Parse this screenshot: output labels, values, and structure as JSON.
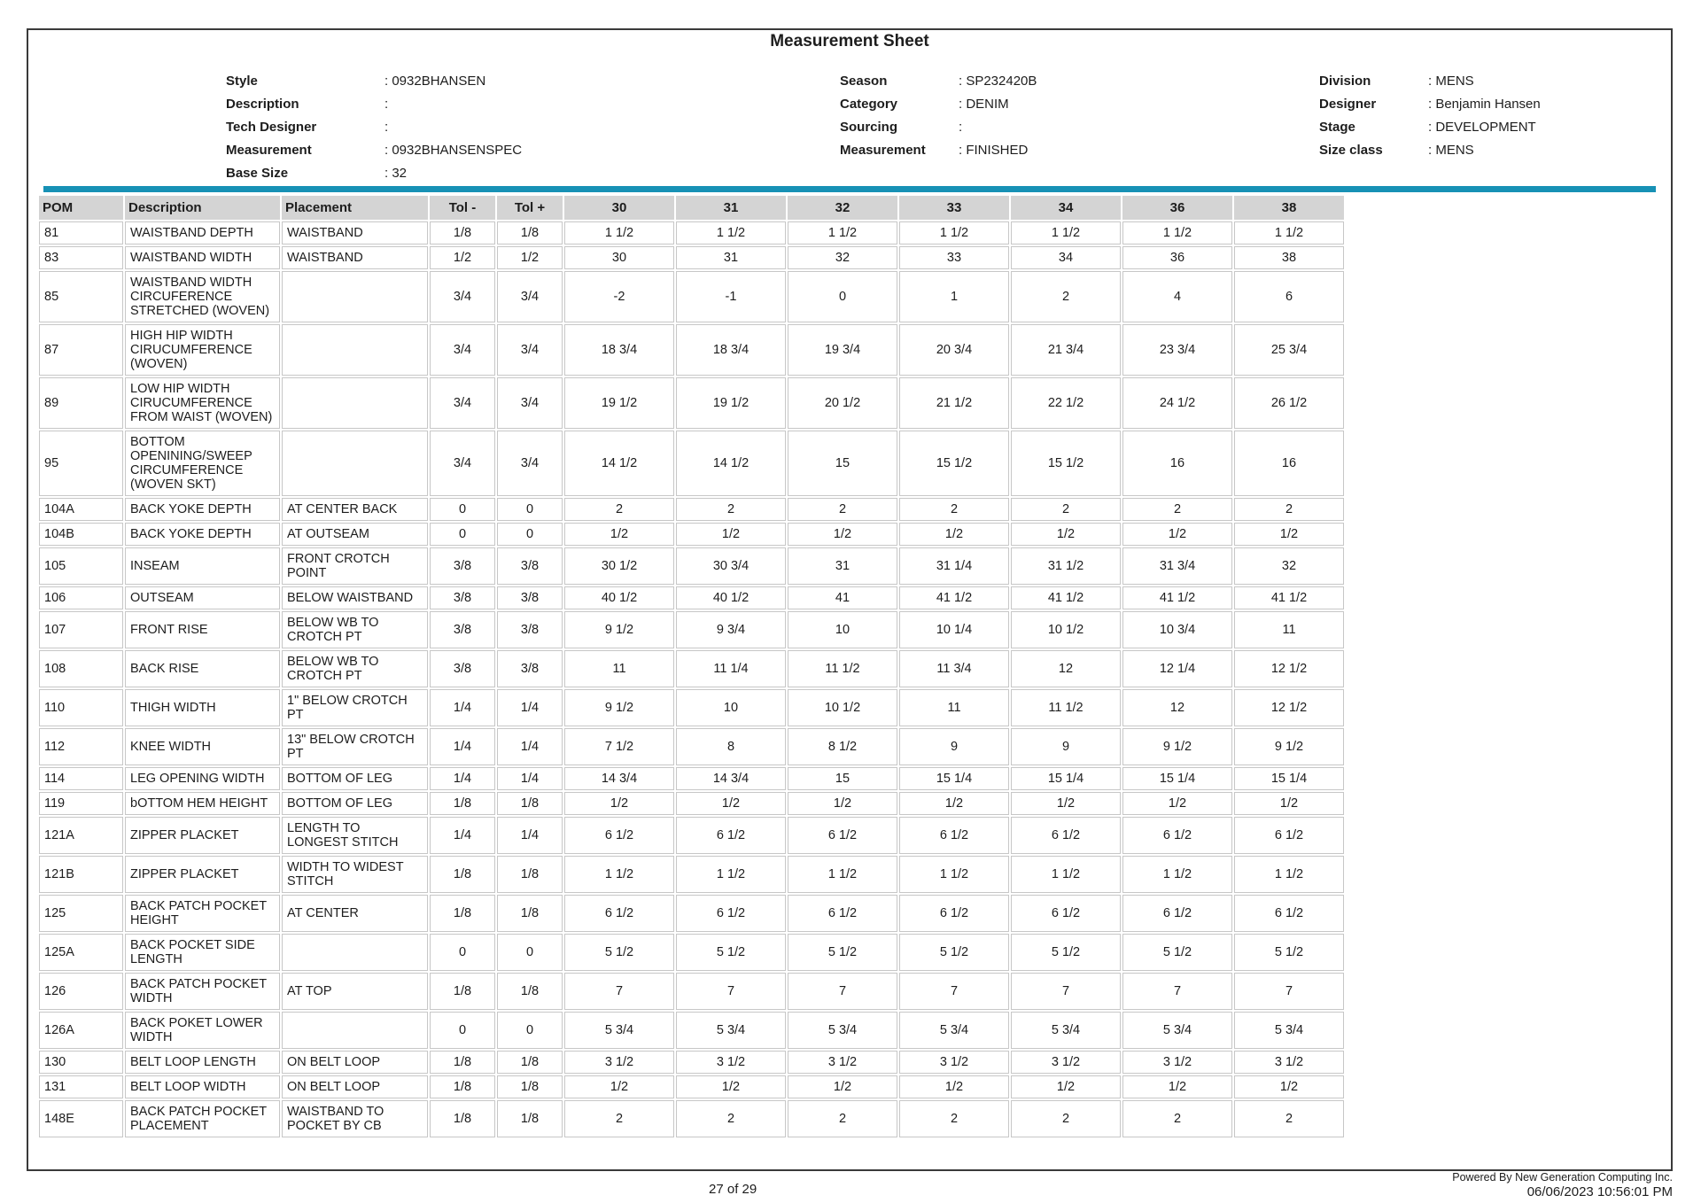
{
  "title": "Measurement Sheet",
  "colors": {
    "accent_line": "#1791b5",
    "table_header_bg": "#d4d4d4",
    "cell_border": "#c7c7c7"
  },
  "info": {
    "left": [
      {
        "label": "Style",
        "value": ": 0932BHANSEN"
      },
      {
        "label": "Description",
        "value": ":"
      },
      {
        "label": "Tech Designer",
        "value": ":"
      },
      {
        "label": "Measurement",
        "value": ": 0932BHANSENSPEC"
      },
      {
        "label": "Base Size",
        "value": ": 32"
      }
    ],
    "middle": [
      {
        "label": "Season",
        "value": ": SP232420B"
      },
      {
        "label": "Category",
        "value": ": DENIM"
      },
      {
        "label": "Sourcing",
        "value": ":"
      },
      {
        "label": "Measurement",
        "value": ": FINISHED"
      }
    ],
    "right": [
      {
        "label": "Division",
        "value": ": MENS"
      },
      {
        "label": "Designer",
        "value": ": Benjamin Hansen"
      },
      {
        "label": "Stage",
        "value": ": DEVELOPMENT"
      },
      {
        "label": "Size class",
        "value": ": MENS"
      }
    ]
  },
  "table": {
    "headers": [
      "POM",
      "Description",
      "Placement",
      "Tol -",
      "Tol +",
      "30",
      "31",
      "32",
      "33",
      "34",
      "36",
      "38"
    ],
    "rows": [
      {
        "pom": "81",
        "description": "WAISTBAND DEPTH",
        "placement": "WAISTBAND",
        "tol_minus": "1/8",
        "tol_plus": "1/8",
        "sizes": [
          "1 1/2",
          "1 1/2",
          "1 1/2",
          "1 1/2",
          "1 1/2",
          "1 1/2",
          "1 1/2"
        ]
      },
      {
        "pom": "83",
        "description": "WAISTBAND WIDTH",
        "placement": "WAISTBAND",
        "tol_minus": "1/2",
        "tol_plus": "1/2",
        "sizes": [
          "30",
          "31",
          "32",
          "33",
          "34",
          "36",
          "38"
        ]
      },
      {
        "pom": "85",
        "description": "WAISTBAND WIDTH CIRCUFERENCE STRETCHED (WOVEN)",
        "placement": "",
        "tol_minus": "3/4",
        "tol_plus": "3/4",
        "sizes": [
          "-2",
          "-1",
          "0",
          "1",
          "2",
          "4",
          "6"
        ]
      },
      {
        "pom": "87",
        "description": "HIGH HIP WIDTH CIRUCUMFERENCE (WOVEN)",
        "placement": "",
        "tol_minus": "3/4",
        "tol_plus": "3/4",
        "sizes": [
          "18 3/4",
          "18 3/4",
          "19 3/4",
          "20 3/4",
          "21 3/4",
          "23 3/4",
          "25 3/4"
        ]
      },
      {
        "pom": "89",
        "description": "LOW HIP WIDTH CIRUCUMFERENCE FROM WAIST (WOVEN)",
        "placement": "",
        "tol_minus": "3/4",
        "tol_plus": "3/4",
        "sizes": [
          "19 1/2",
          "19 1/2",
          "20 1/2",
          "21 1/2",
          "22 1/2",
          "24 1/2",
          "26 1/2"
        ]
      },
      {
        "pom": "95",
        "description": "BOTTOM OPENINING/SWEEP CIRCUMFERENCE (WOVEN SKT)",
        "placement": "",
        "tol_minus": "3/4",
        "tol_plus": "3/4",
        "sizes": [
          "14 1/2",
          "14 1/2",
          "15",
          "15 1/2",
          "15 1/2",
          "16",
          "16"
        ]
      },
      {
        "pom": "104A",
        "description": "BACK YOKE DEPTH",
        "placement": "AT CENTER BACK",
        "tol_minus": "0",
        "tol_plus": "0",
        "sizes": [
          "2",
          "2",
          "2",
          "2",
          "2",
          "2",
          "2"
        ]
      },
      {
        "pom": "104B",
        "description": "BACK YOKE DEPTH",
        "placement": "AT OUTSEAM",
        "tol_minus": "0",
        "tol_plus": "0",
        "sizes": [
          "1/2",
          "1/2",
          "1/2",
          "1/2",
          "1/2",
          "1/2",
          "1/2"
        ]
      },
      {
        "pom": "105",
        "description": "INSEAM",
        "placement": "FRONT CROTCH POINT",
        "tol_minus": "3/8",
        "tol_plus": "3/8",
        "sizes": [
          "30 1/2",
          "30 3/4",
          "31",
          "31 1/4",
          "31 1/2",
          "31 3/4",
          "32"
        ]
      },
      {
        "pom": "106",
        "description": "OUTSEAM",
        "placement": "BELOW WAISTBAND",
        "tol_minus": "3/8",
        "tol_plus": "3/8",
        "sizes": [
          "40 1/2",
          "40 1/2",
          "41",
          "41 1/2",
          "41 1/2",
          "41 1/2",
          "41 1/2"
        ]
      },
      {
        "pom": "107",
        "description": "FRONT RISE",
        "placement": "BELOW WB TO CROTCH PT",
        "tol_minus": "3/8",
        "tol_plus": "3/8",
        "sizes": [
          "9 1/2",
          "9 3/4",
          "10",
          "10 1/4",
          "10 1/2",
          "10 3/4",
          "11"
        ]
      },
      {
        "pom": "108",
        "description": "BACK RISE",
        "placement": "BELOW WB TO CROTCH PT",
        "tol_minus": "3/8",
        "tol_plus": "3/8",
        "sizes": [
          "11",
          "11 1/4",
          "11 1/2",
          "11 3/4",
          "12",
          "12 1/4",
          "12 1/2"
        ]
      },
      {
        "pom": "110",
        "description": "THIGH WIDTH",
        "placement": "1\" BELOW CROTCH PT",
        "tol_minus": "1/4",
        "tol_plus": "1/4",
        "sizes": [
          "9 1/2",
          "10",
          "10 1/2",
          "11",
          "11 1/2",
          "12",
          "12 1/2"
        ]
      },
      {
        "pom": "112",
        "description": "KNEE WIDTH",
        "placement": "13\" BELOW CROTCH PT",
        "tol_minus": "1/4",
        "tol_plus": "1/4",
        "sizes": [
          "7 1/2",
          "8",
          "8 1/2",
          "9",
          "9",
          "9 1/2",
          "9 1/2"
        ]
      },
      {
        "pom": "114",
        "description": "LEG OPENING WIDTH",
        "placement": "BOTTOM OF LEG",
        "tol_minus": "1/4",
        "tol_plus": "1/4",
        "sizes": [
          "14 3/4",
          "14 3/4",
          "15",
          "15 1/4",
          "15 1/4",
          "15 1/4",
          "15 1/4"
        ]
      },
      {
        "pom": "119",
        "description": "bOTTOM HEM HEIGHT",
        "placement": "BOTTOM OF LEG",
        "tol_minus": "1/8",
        "tol_plus": "1/8",
        "sizes": [
          "1/2",
          "1/2",
          "1/2",
          "1/2",
          "1/2",
          "1/2",
          "1/2"
        ]
      },
      {
        "pom": "121A",
        "description": "ZIPPER PLACKET",
        "placement": "LENGTH TO LONGEST STITCH",
        "tol_minus": "1/4",
        "tol_plus": "1/4",
        "sizes": [
          "6 1/2",
          "6 1/2",
          "6 1/2",
          "6 1/2",
          "6 1/2",
          "6 1/2",
          "6 1/2"
        ]
      },
      {
        "pom": "121B",
        "description": "ZIPPER PLACKET",
        "placement": "WIDTH TO WIDEST STITCH",
        "tol_minus": "1/8",
        "tol_plus": "1/8",
        "sizes": [
          "1 1/2",
          "1 1/2",
          "1 1/2",
          "1 1/2",
          "1 1/2",
          "1 1/2",
          "1 1/2"
        ]
      },
      {
        "pom": "125",
        "description": "BACK PATCH POCKET HEIGHT",
        "placement": "AT CENTER",
        "tol_minus": "1/8",
        "tol_plus": "1/8",
        "sizes": [
          "6 1/2",
          "6 1/2",
          "6 1/2",
          "6 1/2",
          "6 1/2",
          "6 1/2",
          "6 1/2"
        ]
      },
      {
        "pom": "125A",
        "description": "BACK POCKET SIDE LENGTH",
        "placement": "",
        "tol_minus": "0",
        "tol_plus": "0",
        "sizes": [
          "5 1/2",
          "5 1/2",
          "5 1/2",
          "5 1/2",
          "5 1/2",
          "5 1/2",
          "5 1/2"
        ]
      },
      {
        "pom": "126",
        "description": "BACK PATCH POCKET WIDTH",
        "placement": "AT TOP",
        "tol_minus": "1/8",
        "tol_plus": "1/8",
        "sizes": [
          "7",
          "7",
          "7",
          "7",
          "7",
          "7",
          "7"
        ]
      },
      {
        "pom": "126A",
        "description": "BACK POKET LOWER WIDTH",
        "placement": "",
        "tol_minus": "0",
        "tol_plus": "0",
        "sizes": [
          "5 3/4",
          "5 3/4",
          "5 3/4",
          "5 3/4",
          "5 3/4",
          "5 3/4",
          "5 3/4"
        ]
      },
      {
        "pom": "130",
        "description": "BELT LOOP LENGTH",
        "placement": "ON BELT LOOP",
        "tol_minus": "1/8",
        "tol_plus": "1/8",
        "sizes": [
          "3 1/2",
          "3 1/2",
          "3 1/2",
          "3 1/2",
          "3 1/2",
          "3 1/2",
          "3 1/2"
        ]
      },
      {
        "pom": "131",
        "description": "BELT LOOP WIDTH",
        "placement": "ON BELT LOOP",
        "tol_minus": "1/8",
        "tol_plus": "1/8",
        "sizes": [
          "1/2",
          "1/2",
          "1/2",
          "1/2",
          "1/2",
          "1/2",
          "1/2"
        ]
      },
      {
        "pom": "148E",
        "description": "BACK PATCH POCKET PLACEMENT",
        "placement": "WAISTBAND TO POCKET BY CB",
        "tol_minus": "1/8",
        "tol_plus": "1/8",
        "sizes": [
          "2",
          "2",
          "2",
          "2",
          "2",
          "2",
          "2"
        ]
      }
    ]
  },
  "footer": {
    "page": "27 of 29",
    "powered_by": "Powered By New Generation Computing Inc.",
    "timestamp": "06/06/2023 10:56:01 PM"
  }
}
